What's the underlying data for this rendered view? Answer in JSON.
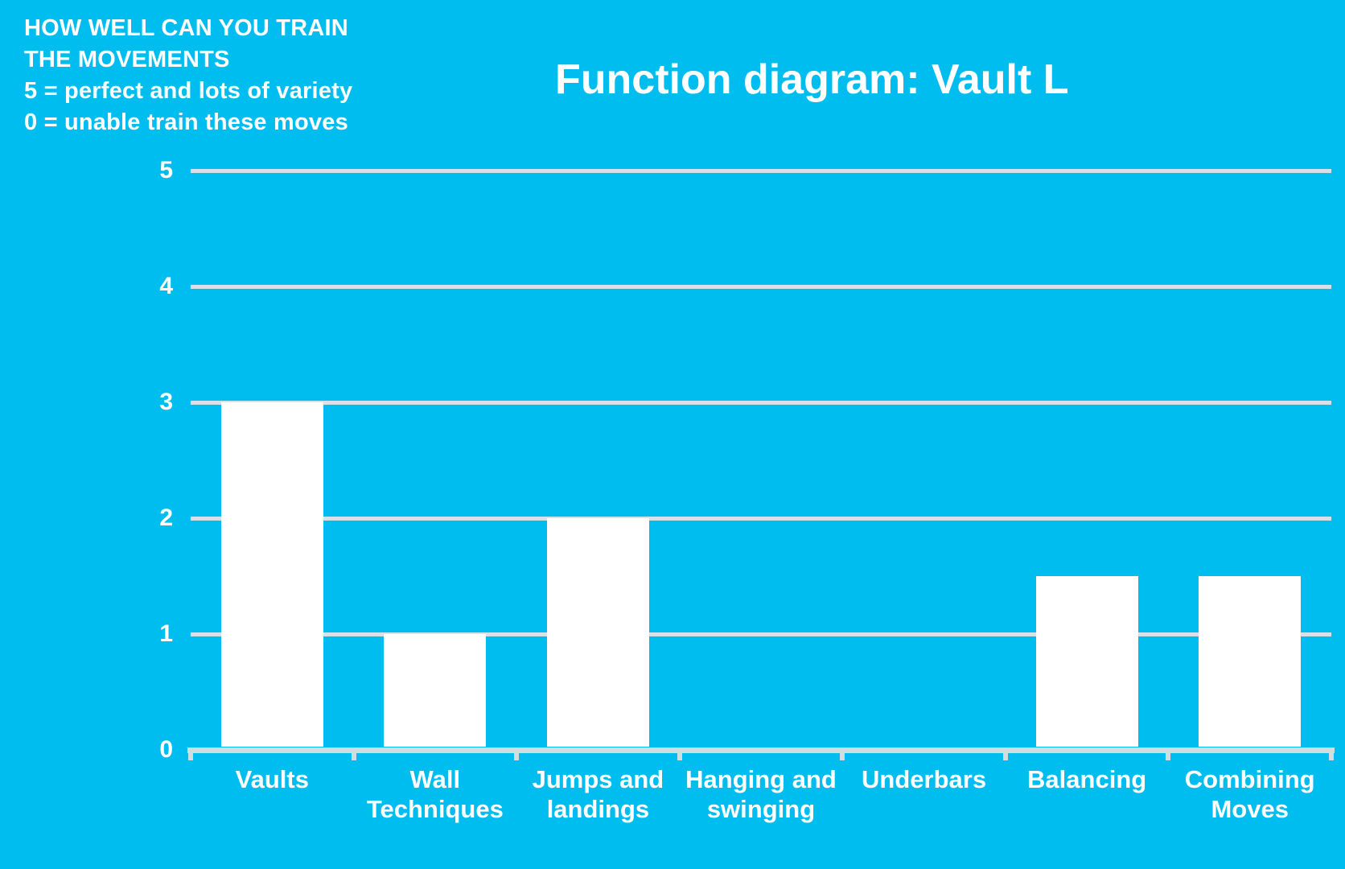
{
  "note": {
    "lines": [
      "HOW WELL CAN YOU TRAIN",
      "THE MOVEMENTS",
      "5 = perfect and lots of variety",
      "0 = unable train these moves"
    ]
  },
  "chart_data": {
    "type": "bar",
    "title": "Function diagram: Vault L",
    "categories": [
      "Vaults",
      "Wall Techniques",
      "Jumps and landings",
      "Hanging and swinging",
      "Underbars",
      "Balancing",
      "Combining Moves"
    ],
    "values": [
      3,
      1,
      2,
      0,
      0,
      1.5,
      1.5
    ],
    "xlabel": "",
    "ylabel": "",
    "ylim": [
      0,
      5
    ],
    "yticks": [
      0,
      1,
      2,
      3,
      4,
      5
    ],
    "grid": true,
    "legend": false,
    "colors": {
      "background": "#00BDF0",
      "bar": "#FFFFFF",
      "gridline": "#D8E1E7",
      "axis": "#D2DCE2",
      "text": "#FFFFFF"
    }
  }
}
